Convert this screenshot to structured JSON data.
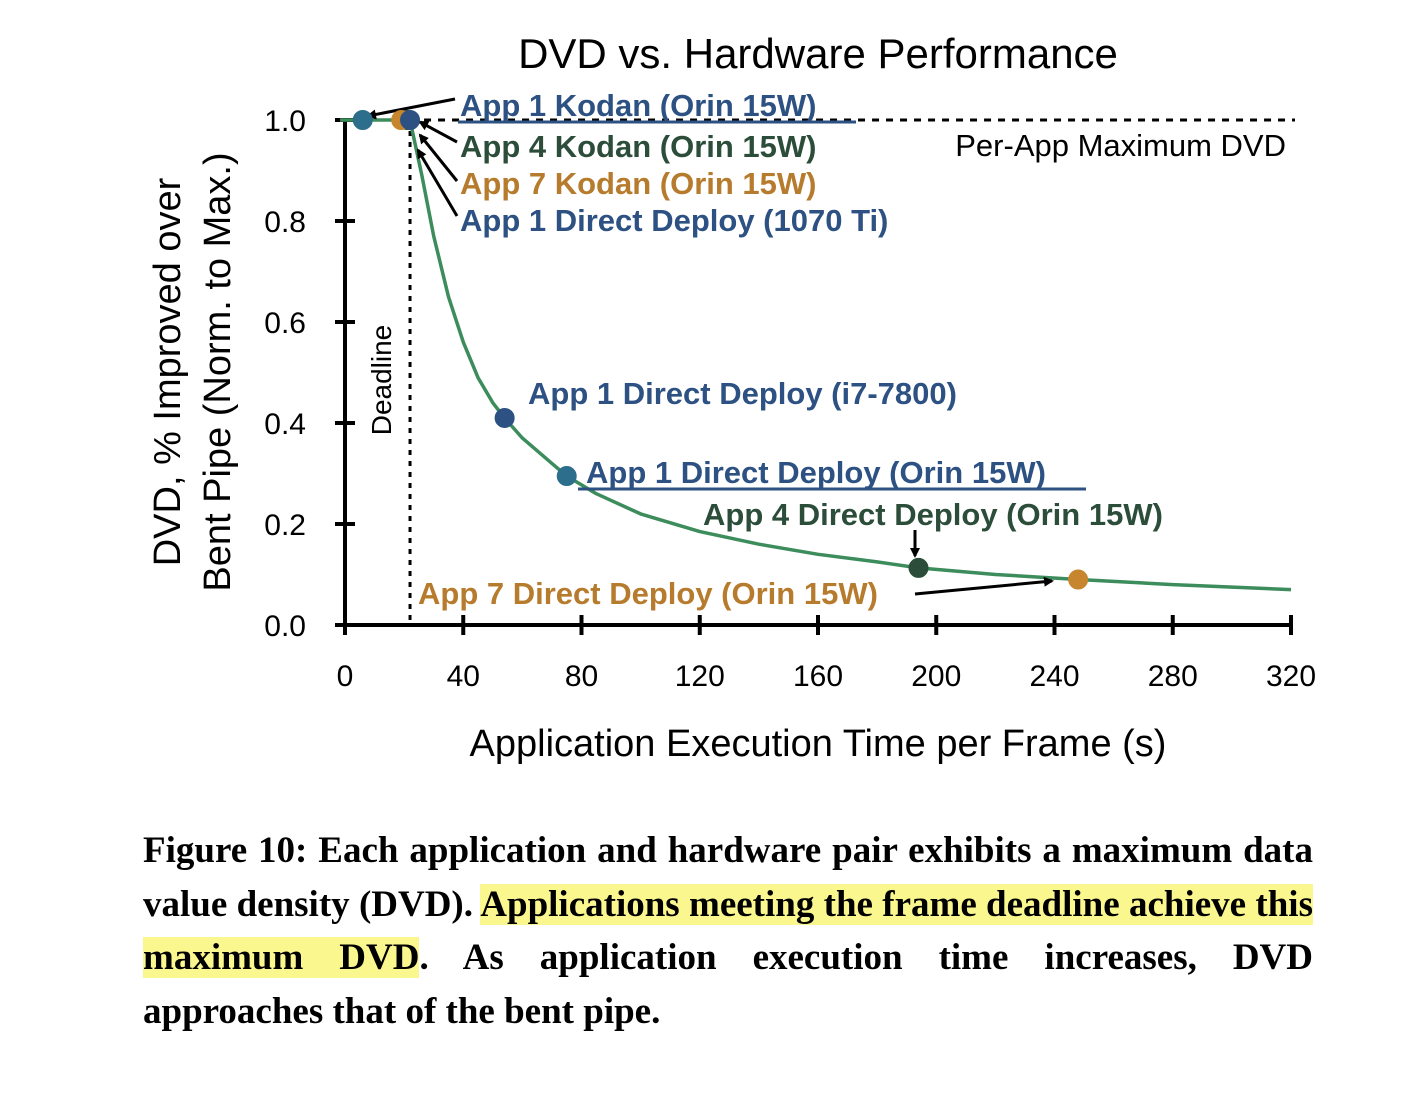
{
  "chart_data": {
    "type": "scatter",
    "title": "DVD vs. Hardware Performance",
    "xlabel": "Application Execution Time per Frame (s)",
    "ylabel_lines": [
      "DVD, % Improved over",
      "Bent Pipe (Norm. to Max.)"
    ],
    "xlim": [
      0,
      320
    ],
    "ylim": [
      0,
      1.0
    ],
    "xticks": [
      0,
      40,
      80,
      120,
      160,
      200,
      240,
      280,
      320
    ],
    "xtick_labels": [
      "0",
      "40",
      "80",
      "120",
      "160",
      "200",
      "240",
      "280",
      "320"
    ],
    "yticks": [
      0,
      0.2,
      0.4,
      0.6,
      0.8,
      1.0
    ],
    "ytick_labels": [
      "0.0",
      "0.2",
      "0.4",
      "0.6",
      "0.8",
      "1.0"
    ],
    "grid": false,
    "deadline": {
      "x": 22,
      "label": "Deadline"
    },
    "max_line": {
      "y": 1.0,
      "label": "Per-App Maximum DVD"
    },
    "curve": {
      "color": "#3c8c5c",
      "x": [
        22,
        26,
        30,
        35,
        40,
        45,
        50,
        54,
        60,
        70,
        75,
        85,
        100,
        120,
        140,
        160,
        180,
        194,
        220,
        248,
        280,
        320
      ],
      "y": [
        1.0,
        0.89,
        0.77,
        0.65,
        0.56,
        0.49,
        0.44,
        0.41,
        0.37,
        0.32,
        0.295,
        0.26,
        0.22,
        0.185,
        0.16,
        0.14,
        0.125,
        0.113,
        0.1,
        0.09,
        0.08,
        0.07
      ]
    },
    "points": [
      {
        "label": "App 1 Kodan (Orin 15W)",
        "x": 6,
        "y": 1.0,
        "color": "#2c5182",
        "marker": "#2c6e8c"
      },
      {
        "label": "App 4 Kodan (Orin 15W)",
        "x": 21,
        "y": 1.0,
        "color": "#2b4d3a",
        "marker": "#2b4d3a"
      },
      {
        "label": "App 7 Kodan (Orin 15W)",
        "x": 19,
        "y": 1.0,
        "color": "#b67b2c",
        "marker": "#c7862e"
      },
      {
        "label": "App 1 Direct Deploy (1070 Ti)",
        "x": 22,
        "y": 1.0,
        "color": "#2c5182",
        "marker": "#2c5182"
      },
      {
        "label": "App 1 Direct Deploy (i7-7800)",
        "x": 54,
        "y": 0.41,
        "color": "#2c5182",
        "marker": "#2c5182"
      },
      {
        "label": "App 1 Direct Deploy (Orin 15W)",
        "x": 75,
        "y": 0.295,
        "color": "#2c5182",
        "marker": "#2c6e8c"
      },
      {
        "label": "App 4 Direct Deploy (Orin 15W)",
        "x": 194,
        "y": 0.113,
        "color": "#2b4d3a",
        "marker": "#2b4d3a"
      },
      {
        "label": "App 7 Direct Deploy (Orin 15W)",
        "x": 248,
        "y": 0.09,
        "color": "#b67b2c",
        "marker": "#c7862e"
      }
    ]
  },
  "caption": {
    "lead": "Figure 10: Each application and hardware pair exhibits a maximum data value density (DVD). ",
    "highlight": "Applications meeting the frame deadline achieve this maximum DVD",
    "rest": ". As application execution time increases, DVD approaches that of the bent pipe."
  }
}
